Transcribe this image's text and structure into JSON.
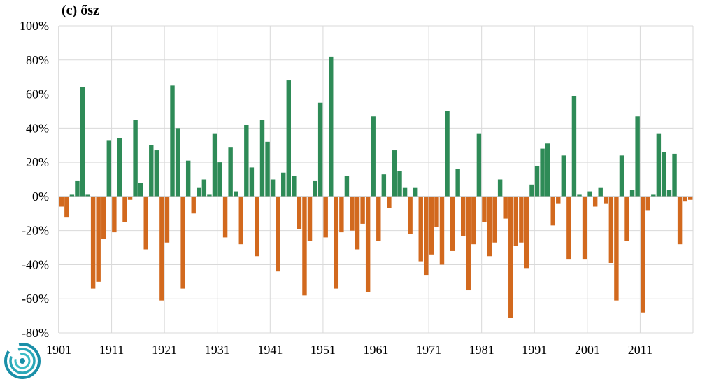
{
  "chart_data": {
    "type": "bar",
    "title": "(c) ősz",
    "xlabel": "",
    "ylabel": "",
    "ylim": [
      -80,
      100
    ],
    "y_tick_values": [
      -80,
      -60,
      -40,
      -20,
      0,
      20,
      40,
      60,
      80,
      100
    ],
    "y_tick_labels": [
      "-80%",
      "-60%",
      "-40%",
      "-20%",
      "0%",
      "20%",
      "40%",
      "60%",
      "80%",
      "100%"
    ],
    "x_tick_labels": [
      "1901",
      "1911",
      "1921",
      "1931",
      "1941",
      "1951",
      "1961",
      "1971",
      "1981",
      "1991",
      "2001",
      "2011"
    ],
    "grid": true,
    "positive_color": "#2e8b57",
    "negative_color": "#d2691e",
    "years": [
      1901,
      1902,
      1903,
      1904,
      1905,
      1906,
      1907,
      1908,
      1909,
      1910,
      1911,
      1912,
      1913,
      1914,
      1915,
      1916,
      1917,
      1918,
      1919,
      1920,
      1921,
      1922,
      1923,
      1924,
      1925,
      1926,
      1927,
      1928,
      1929,
      1930,
      1931,
      1932,
      1933,
      1934,
      1935,
      1936,
      1937,
      1938,
      1939,
      1940,
      1941,
      1942,
      1943,
      1944,
      1945,
      1946,
      1947,
      1948,
      1949,
      1950,
      1951,
      1952,
      1953,
      1954,
      1955,
      1956,
      1957,
      1958,
      1959,
      1960,
      1961,
      1962,
      1963,
      1964,
      1965,
      1966,
      1967,
      1968,
      1969,
      1970,
      1971,
      1972,
      1973,
      1974,
      1975,
      1976,
      1977,
      1978,
      1979,
      1980,
      1981,
      1982,
      1983,
      1984,
      1985,
      1986,
      1987,
      1988,
      1989,
      1990,
      1991,
      1992,
      1993,
      1994,
      1995,
      1996,
      1997,
      1998,
      1999,
      2000,
      2001,
      2002,
      2003,
      2004,
      2005,
      2006,
      2007,
      2008,
      2009,
      2010,
      2011,
      2012,
      2013,
      2014,
      2015,
      2016,
      2017,
      2018,
      2019,
      2020
    ],
    "values": [
      -6,
      -12,
      1,
      9,
      64,
      1,
      -54,
      -50,
      -25,
      33,
      -21,
      34,
      -15,
      -2,
      45,
      8,
      -31,
      30,
      27,
      -61,
      -27,
      65,
      40,
      -54,
      21,
      -10,
      5,
      10,
      1,
      37,
      20,
      -24,
      29,
      3,
      -28,
      42,
      17,
      -35,
      45,
      32,
      10,
      -44,
      14,
      68,
      12,
      -19,
      -58,
      -26,
      9,
      55,
      -24,
      82,
      -54,
      -21,
      12,
      -20,
      -31,
      -16,
      -56,
      47,
      -26,
      13,
      -7,
      27,
      15,
      5,
      -22,
      5,
      -38,
      -46,
      -34,
      -18,
      -40,
      50,
      -32,
      16,
      -23,
      -55,
      -28,
      37,
      -15,
      -35,
      -27,
      10,
      -13,
      -71,
      -29,
      -27,
      -42,
      7,
      18,
      28,
      31,
      -17,
      -4,
      24,
      -37,
      59,
      1,
      -37,
      3,
      -6,
      5,
      -4,
      -39,
      -61,
      24,
      -26,
      4,
      47,
      -68,
      -8,
      1,
      37,
      26,
      4,
      25,
      -28,
      -3,
      -2
    ]
  }
}
